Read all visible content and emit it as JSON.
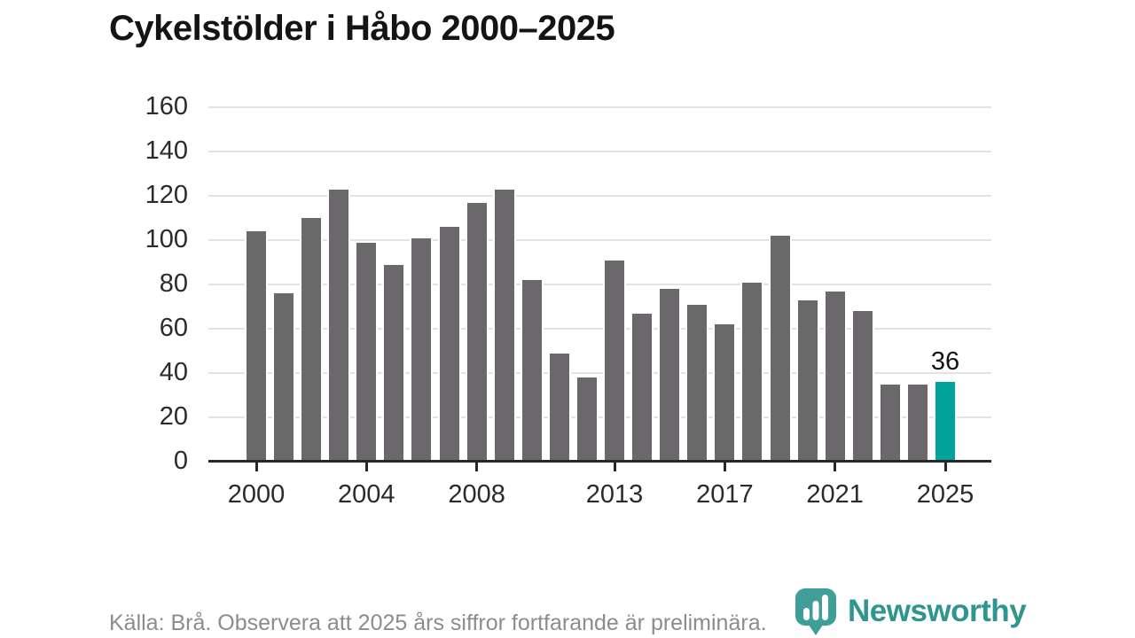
{
  "title": "Cykelstölder i Håbo 2000–2025",
  "footer": {
    "source_note": "Källa: Brå. Observera att 2025 års siffror fortfarande är preliminära.",
    "brand": "Newsworthy"
  },
  "colors": {
    "bar": "#6b686b",
    "highlight": "#00a29a",
    "brand_teal": "#3f9e97",
    "wordmark_teal": "#2e968e",
    "grid": "#e3e3e3",
    "axis": "#272727",
    "title_text": "#141414",
    "tick_text": "#2b2b2b",
    "footer_text": "#8c8c8c"
  },
  "chart_data": {
    "type": "bar",
    "title": "Cykelstölder i Håbo 2000–2025",
    "xlabel": "",
    "ylabel": "",
    "categories": [
      2000,
      2001,
      2002,
      2003,
      2004,
      2005,
      2006,
      2007,
      2008,
      2009,
      2010,
      2011,
      2012,
      2013,
      2014,
      2015,
      2016,
      2017,
      2018,
      2019,
      2020,
      2021,
      2022,
      2023,
      2024,
      2025
    ],
    "values": [
      104,
      76,
      110,
      123,
      99,
      89,
      101,
      106,
      117,
      123,
      82,
      49,
      38,
      91,
      67,
      78,
      71,
      62,
      81,
      102,
      73,
      77,
      68,
      35,
      35,
      36
    ],
    "highlight": {
      "category": 2025,
      "value": 36,
      "label": "36"
    },
    "ylim": [
      0,
      160
    ],
    "yticks": [
      0,
      20,
      40,
      60,
      80,
      100,
      120,
      140,
      160
    ],
    "xtick_labels": [
      "2000",
      "2004",
      "2008",
      "2013",
      "2017",
      "2021",
      "2025"
    ],
    "grid": "horizontal",
    "legend": false
  }
}
